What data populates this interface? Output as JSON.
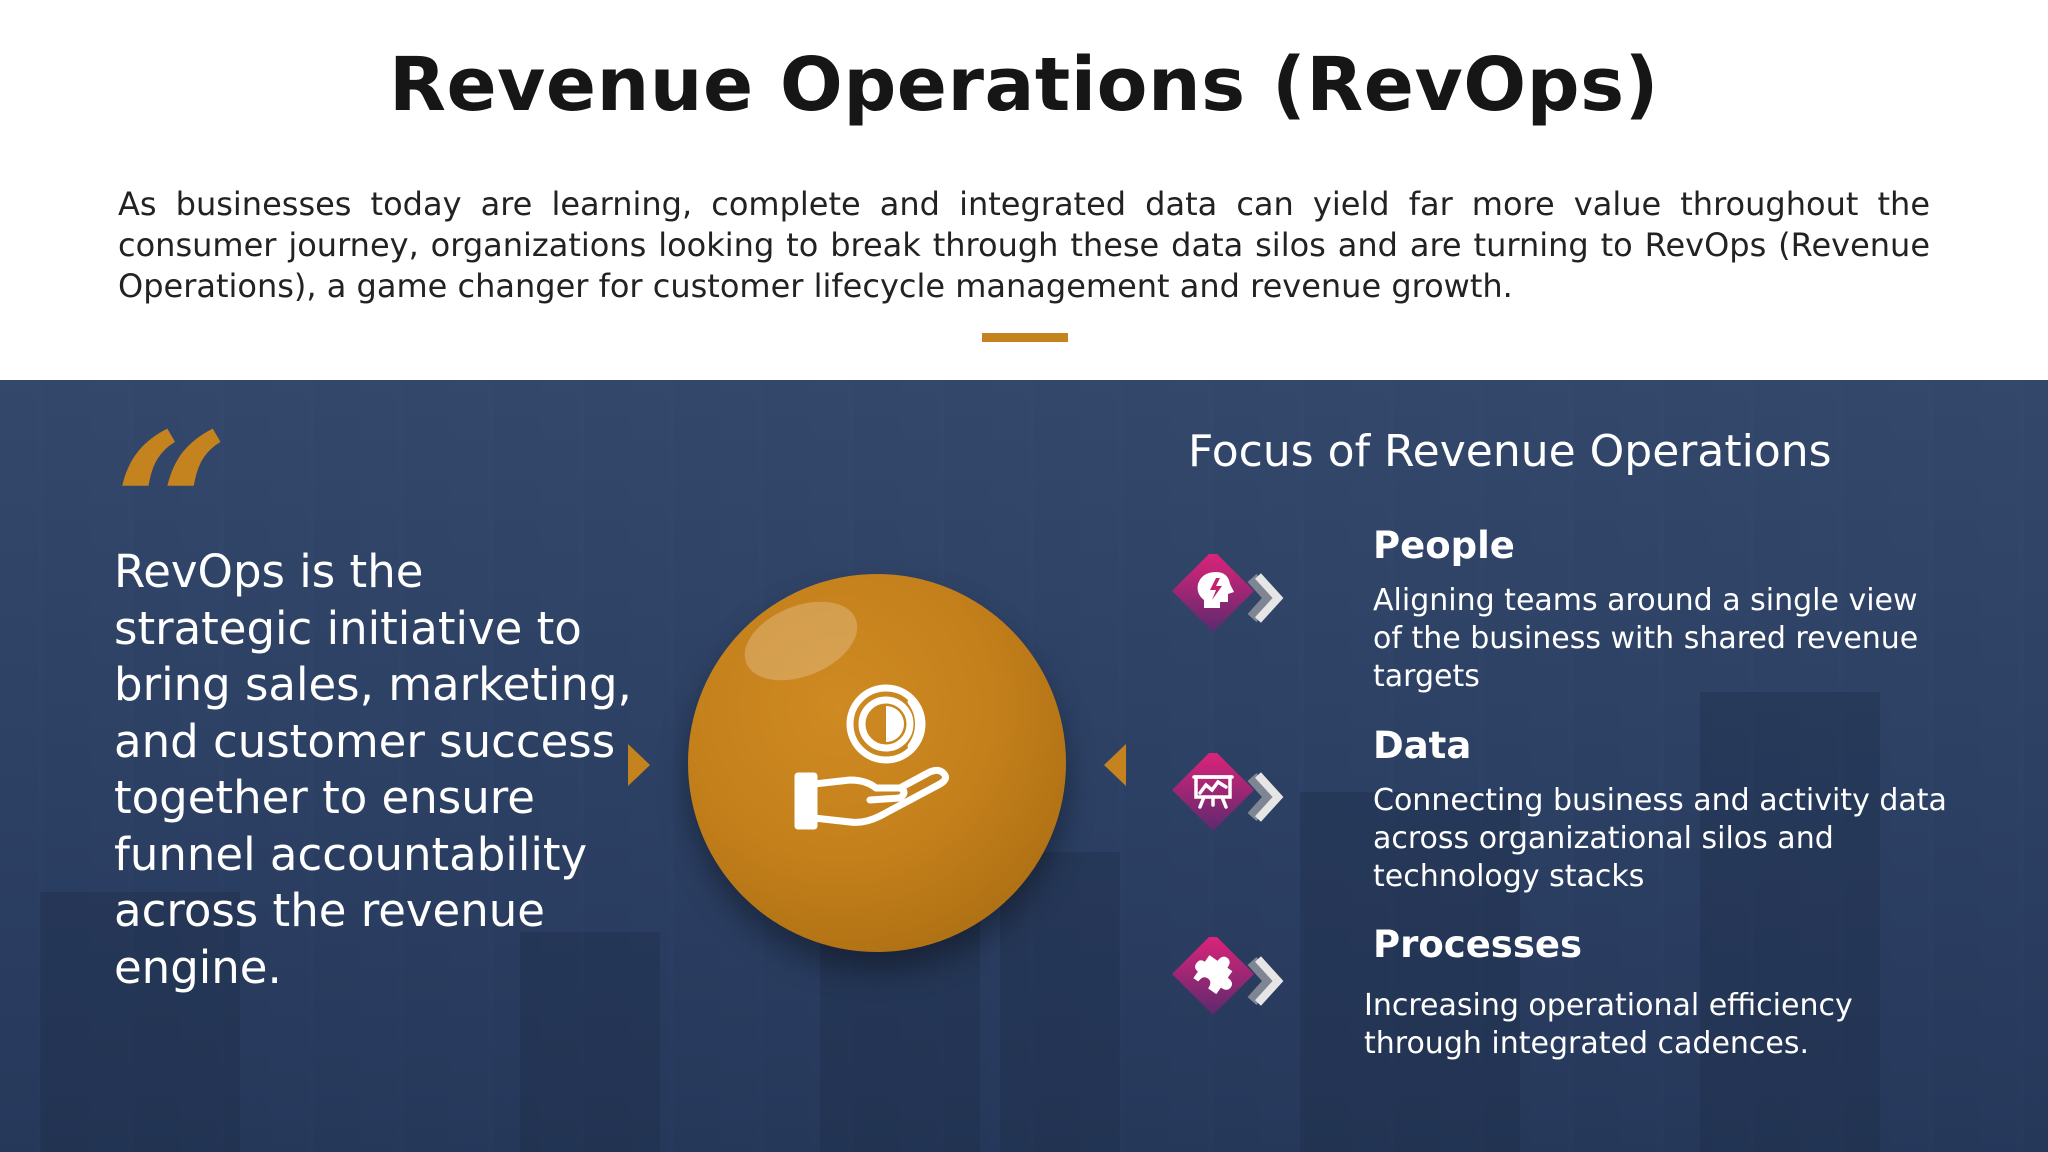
{
  "header": {
    "title": "Revenue Operations (RevOps)",
    "intro": "As businesses today are learning, complete and integrated data can yield far more value throughout the consumer journey, organizations looking to break through these data silos and are turning to RevOps (Revenue Operations), a game changer for customer lifecycle management and revenue growth."
  },
  "quote": {
    "mark": "“",
    "text": "RevOps is the strategic initiative to bring sales, marketing, and customer success together to ensure funnel accountability across the revenue engine."
  },
  "focus": {
    "title": "Focus of Revenue Operations",
    "items": [
      {
        "heading": "People",
        "description": "Aligning teams around a single view of the business with shared revenue targets",
        "icon": "brain-head-icon"
      },
      {
        "heading": "Data",
        "description": "Connecting business and activity data across organizational silos and technology stacks",
        "icon": "presentation-board-icon"
      },
      {
        "heading": "Processes",
        "description": "Increasing operational efficiency through integrated cadences.",
        "icon": "puzzle-piece-icon"
      }
    ]
  },
  "colors": {
    "accent": "#c4831e",
    "panel": "#34486c",
    "icon_gradient_start": "#e2237a",
    "icon_gradient_end": "#5b2a6e"
  },
  "center_icon": "coin-in-hand-icon"
}
